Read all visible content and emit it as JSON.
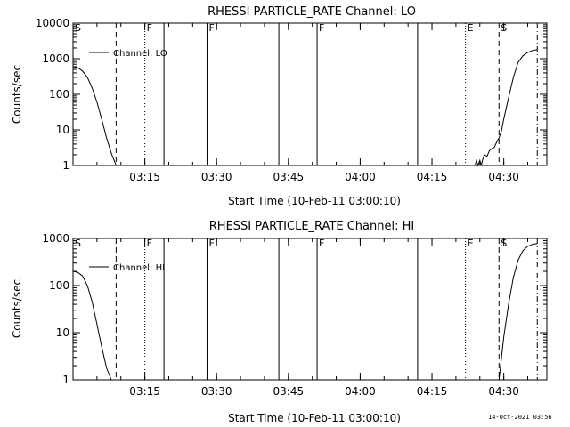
{
  "footer": {
    "timestamp": "14-Oct-2021 03:56"
  },
  "chart_data": [
    {
      "type": "line",
      "title": "RHESSI PARTICLE_RATE Channel: LO",
      "ylabel": "Counts/sec",
      "xlabel": "Start Time (10-Feb-11 03:00:10)",
      "yscale": "log",
      "ylim": [
        1,
        10000
      ],
      "yticks": [
        "1",
        "10",
        "100",
        "1000",
        "10000"
      ],
      "xlim": [
        "03:00",
        "04:39"
      ],
      "xticks": [
        "03:15",
        "03:30",
        "03:45",
        "04:00",
        "04:15",
        "04:30"
      ],
      "legend": {
        "label": "Channel: LO",
        "placement": "top-left"
      },
      "markers": [
        {
          "time": "03:00",
          "style": "solid",
          "label": "S"
        },
        {
          "time": "03:09",
          "style": "dashed",
          "label": ""
        },
        {
          "time": "03:15",
          "style": "dotted",
          "label": "F"
        },
        {
          "time": "03:19",
          "style": "solid",
          "label": ""
        },
        {
          "time": "03:28",
          "style": "solid",
          "label": "F"
        },
        {
          "time": "03:43",
          "style": "solid",
          "label": ""
        },
        {
          "time": "03:51",
          "style": "solid",
          "label": "F"
        },
        {
          "time": "04:12",
          "style": "solid",
          "label": ""
        },
        {
          "time": "04:22",
          "style": "dotted",
          "label": "E"
        },
        {
          "time": "04:29",
          "style": "dashed",
          "label": "S"
        },
        {
          "time": "04:37",
          "style": "dashdot",
          "label": ""
        }
      ],
      "series": [
        {
          "name": "Channel: LO",
          "segments": [
            [
              [
                "03:00",
                600
              ],
              [
                "03:01",
                560
              ],
              [
                "03:02",
                450
              ],
              [
                "03:03",
                300
              ],
              [
                "03:04",
                150
              ],
              [
                "03:05",
                60
              ],
              [
                "03:06",
                20
              ],
              [
                "03:07",
                6
              ],
              [
                "03:08",
                2.2
              ],
              [
                "03:09",
                1
              ]
            ],
            [
              [
                "04:24",
                1
              ],
              [
                "04:24.3",
                1.4
              ],
              [
                "04:24.6",
                1
              ],
              [
                "04:25",
                1.4
              ],
              [
                "04:25.3",
                1
              ],
              [
                "04:25.6",
                1.5
              ],
              [
                "04:26",
                2
              ],
              [
                "04:26.5",
                1.8
              ],
              [
                "04:27",
                2.6
              ],
              [
                "04:27.5",
                3
              ],
              [
                "04:28",
                3.2
              ],
              [
                "04:28.5",
                4.5
              ],
              [
                "04:29",
                6
              ],
              [
                "04:29.5",
                9
              ],
              [
                "04:30",
                20
              ],
              [
                "04:31",
                80
              ],
              [
                "04:32",
                300
              ],
              [
                "04:33",
                800
              ],
              [
                "04:34",
                1200
              ],
              [
                "04:35",
                1500
              ],
              [
                "04:36",
                1700
              ],
              [
                "04:37",
                1800
              ]
            ]
          ]
        }
      ]
    },
    {
      "type": "line",
      "title": "RHESSI PARTICLE_RATE Channel: HI",
      "ylabel": "Counts/sec",
      "xlabel": "Start Time (10-Feb-11 03:00:10)",
      "yscale": "log",
      "ylim": [
        1,
        1000
      ],
      "yticks": [
        "1",
        "10",
        "100",
        "1000"
      ],
      "xlim": [
        "03:00",
        "04:39"
      ],
      "xticks": [
        "03:15",
        "03:30",
        "03:45",
        "04:00",
        "04:15",
        "04:30"
      ],
      "legend": {
        "label": "Channel: HI",
        "placement": "top-left"
      },
      "markers": [
        {
          "time": "03:00",
          "style": "solid",
          "label": "S"
        },
        {
          "time": "03:09",
          "style": "dashed",
          "label": ""
        },
        {
          "time": "03:15",
          "style": "dotted",
          "label": "F"
        },
        {
          "time": "03:19",
          "style": "solid",
          "label": ""
        },
        {
          "time": "03:28",
          "style": "solid",
          "label": "F"
        },
        {
          "time": "03:43",
          "style": "solid",
          "label": ""
        },
        {
          "time": "03:51",
          "style": "solid",
          "label": "F"
        },
        {
          "time": "04:12",
          "style": "solid",
          "label": ""
        },
        {
          "time": "04:22",
          "style": "dotted",
          "label": "E"
        },
        {
          "time": "04:29",
          "style": "dashed",
          "label": "S"
        },
        {
          "time": "04:37",
          "style": "dashdot",
          "label": ""
        }
      ],
      "series": [
        {
          "name": "Channel: HI",
          "segments": [
            [
              [
                "03:00",
                200
              ],
              [
                "03:01",
                190
              ],
              [
                "03:02",
                160
              ],
              [
                "03:03",
                100
              ],
              [
                "03:04",
                45
              ],
              [
                "03:05",
                15
              ],
              [
                "03:06",
                5
              ],
              [
                "03:07",
                1.8
              ],
              [
                "03:08",
                1
              ]
            ],
            [
              [
                "04:29",
                1
              ],
              [
                "04:30",
                8
              ],
              [
                "04:31",
                40
              ],
              [
                "04:32",
                150
              ],
              [
                "04:33",
                350
              ],
              [
                "04:34",
                550
              ],
              [
                "04:35",
                680
              ],
              [
                "04:36",
                750
              ],
              [
                "04:37",
                780
              ]
            ]
          ]
        }
      ]
    }
  ]
}
